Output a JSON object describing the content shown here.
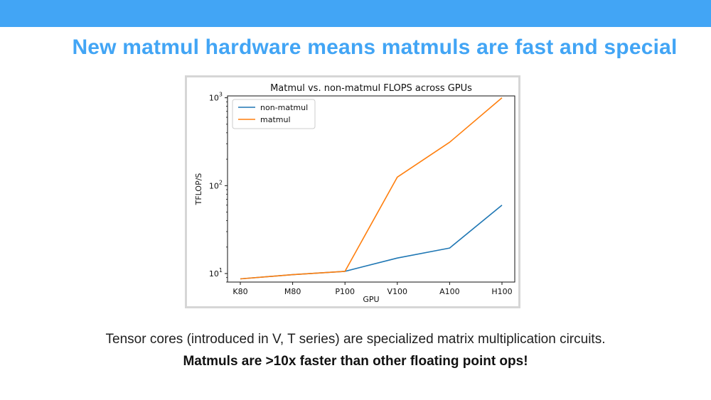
{
  "slide": {
    "title": "New matmul hardware means matmuls are fast and special",
    "caption_line1": "Tensor cores (introduced in V, T series) are specialized matrix multiplication circuits.",
    "caption_line2": "Matmuls are >10x faster than other floating point ops!",
    "accent_color": "#42a5f5"
  },
  "chart_data": {
    "type": "line",
    "title": "Matmul vs. non-matmul FLOPS across GPUs",
    "xlabel": "GPU",
    "ylabel": "TFLOP/S",
    "yscale": "log",
    "ylim": [
      8,
      1050
    ],
    "yticks": [
      10,
      100,
      1000
    ],
    "ytick_labels": [
      {
        "base": "10",
        "exp": "1"
      },
      {
        "base": "10",
        "exp": "2"
      },
      {
        "base": "10",
        "exp": "3"
      }
    ],
    "categories": [
      "K80",
      "M80",
      "P100",
      "V100",
      "A100",
      "H100"
    ],
    "series": [
      {
        "name": "non-matmul",
        "color": "#1f77b4",
        "values": [
          8.7,
          9.7,
          10.6,
          15,
          19.5,
          60
        ]
      },
      {
        "name": "matmul",
        "color": "#ff7f0e",
        "values": [
          8.7,
          9.7,
          10.6,
          125,
          312,
          1000
        ]
      }
    ],
    "grid": false,
    "legend_position": "top-left"
  }
}
